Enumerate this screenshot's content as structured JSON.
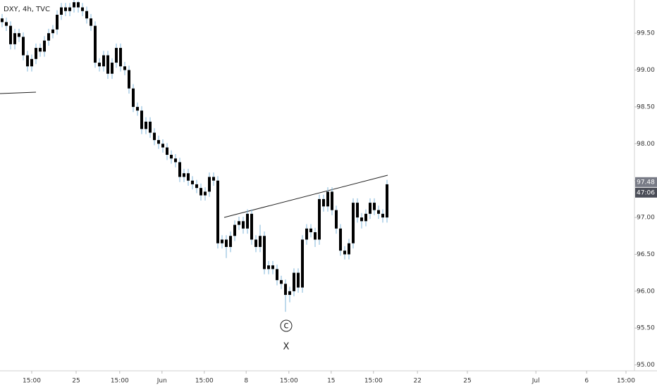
{
  "chart_data": {
    "type": "candlestick",
    "title": "DXY, 4h, TVC",
    "ylim": [
      94.92,
      99.95
    ],
    "yticks": [
      {
        "value": 95,
        "label": "95.00"
      },
      {
        "value": 95.5,
        "label": "95.50"
      },
      {
        "value": 96,
        "label": "96.00"
      },
      {
        "value": 96.5,
        "label": "96.50"
      },
      {
        "value": 97,
        "label": "97.00"
      },
      {
        "value": 97.5,
        "label": "97.50"
      },
      {
        "value": 98,
        "label": "98.00"
      },
      {
        "value": 98.5,
        "label": "98.50"
      },
      {
        "value": 99,
        "label": "99.00"
      },
      {
        "value": 99.5,
        "label": "99.50"
      }
    ],
    "xlim": [
      -0.5,
      149.5
    ],
    "xticks": [
      {
        "value": 7,
        "label": "15:00"
      },
      {
        "value": 17.5,
        "label": "25"
      },
      {
        "value": 27.8,
        "label": "15:00"
      },
      {
        "value": 37.8,
        "label": "Jun"
      },
      {
        "value": 47.8,
        "label": "15:00"
      },
      {
        "value": 57.7,
        "label": "8"
      },
      {
        "value": 67.8,
        "label": "15:00"
      },
      {
        "value": 77.8,
        "label": "15"
      },
      {
        "value": 87.8,
        "label": "15:00"
      },
      {
        "value": 98.2,
        "label": "22"
      },
      {
        "value": 110,
        "label": "25"
      },
      {
        "value": 126.2,
        "label": "Jul"
      },
      {
        "value": 138.2,
        "label": "6"
      },
      {
        "value": 147.5,
        "label": "15:00"
      }
    ],
    "body_color": "#000000",
    "wick_color": "#7fb6d9",
    "open": [
      99.7,
      99.65,
      99.6,
      99.35,
      99.5,
      99.45,
      99.2,
      99.05,
      99.15,
      99.3,
      99.25,
      99.4,
      99.5,
      99.55,
      99.75,
      99.85,
      99.8,
      99.85,
      99.92,
      99.85,
      99.8,
      99.7,
      99.6,
      99.1,
      99.05,
      99.2,
      98.95,
      99.1,
      99.3,
      99.05,
      99.0,
      98.75,
      98.5,
      98.45,
      98.2,
      98.3,
      98.15,
      98.05,
      98.0,
      97.95,
      97.85,
      97.8,
      97.75,
      97.55,
      97.6,
      97.5,
      97.45,
      97.4,
      97.3,
      97.35,
      97.55,
      97.5,
      96.65,
      96.7,
      96.6,
      96.75,
      96.9,
      96.95,
      96.85,
      97.05,
      96.7,
      96.6,
      96.75,
      96.3,
      96.35,
      96.3,
      96.15,
      96.1,
      95.95,
      96.0,
      96.25,
      96.05,
      96.7,
      96.85,
      96.8,
      96.7,
      97.25,
      97.15,
      97.35,
      97.1,
      96.85,
      96.55,
      96.5,
      96.65,
      97.2,
      97.0,
      96.95,
      97.05,
      97.2,
      97.1,
      97.05,
      97.0
    ],
    "high": [
      99.76,
      99.71,
      99.66,
      99.56,
      99.56,
      99.51,
      99.26,
      99.21,
      99.36,
      99.36,
      99.46,
      99.56,
      99.61,
      99.81,
      99.91,
      99.91,
      99.91,
      99.95,
      99.94,
      99.91,
      99.86,
      99.76,
      99.66,
      99.16,
      99.26,
      99.26,
      99.16,
      99.36,
      99.36,
      99.11,
      99.06,
      98.81,
      98.56,
      98.51,
      98.36,
      98.36,
      98.21,
      98.11,
      98.06,
      98.01,
      97.91,
      97.86,
      97.81,
      97.66,
      97.66,
      97.56,
      97.51,
      97.46,
      97.41,
      97.61,
      97.61,
      97.56,
      96.76,
      96.76,
      96.81,
      96.96,
      97.01,
      97.01,
      97.11,
      97.11,
      96.76,
      96.9,
      96.81,
      96.41,
      96.41,
      96.36,
      96.21,
      96.16,
      96.06,
      96.31,
      96.31,
      96.76,
      96.91,
      96.91,
      96.86,
      97.31,
      97.31,
      97.41,
      97.41,
      97.16,
      96.91,
      96.61,
      96.71,
      97.26,
      97.26,
      97.06,
      97.11,
      97.26,
      97.26,
      97.16,
      97.11,
      97.51
    ],
    "low": [
      99.58,
      99.53,
      99.28,
      99.28,
      99.38,
      99.13,
      98.98,
      98.98,
      99.08,
      99.18,
      99.18,
      99.33,
      99.43,
      99.48,
      99.68,
      99.73,
      99.73,
      99.78,
      99.78,
      99.73,
      99.63,
      99.53,
      99.03,
      98.98,
      98.98,
      98.88,
      98.88,
      99.03,
      98.98,
      98.93,
      98.68,
      98.43,
      98.38,
      98.13,
      98.13,
      98.08,
      97.98,
      97.93,
      97.88,
      97.78,
      97.73,
      97.68,
      97.48,
      97.48,
      97.43,
      97.38,
      97.33,
      97.23,
      97.23,
      97.28,
      97.43,
      96.58,
      96.58,
      96.45,
      96.53,
      96.68,
      96.83,
      96.78,
      96.78,
      96.63,
      96.53,
      96.53,
      96.23,
      96.23,
      96.23,
      96.08,
      96.03,
      95.72,
      95.85,
      95.93,
      95.98,
      95.98,
      96.63,
      96.73,
      96.6,
      96.63,
      97.08,
      97.08,
      97.03,
      96.78,
      96.48,
      96.43,
      96.43,
      96.58,
      96.93,
      96.85,
      96.88,
      96.98,
      97.03,
      96.98,
      96.93,
      96.93
    ],
    "close": [
      99.65,
      99.6,
      99.35,
      99.5,
      99.45,
      99.2,
      99.05,
      99.15,
      99.3,
      99.25,
      99.4,
      99.5,
      99.55,
      99.75,
      99.85,
      99.8,
      99.85,
      99.92,
      99.85,
      99.8,
      99.7,
      99.6,
      99.1,
      99.05,
      99.2,
      98.95,
      99.1,
      99.3,
      99.05,
      99.0,
      98.75,
      98.5,
      98.45,
      98.2,
      98.3,
      98.15,
      98.05,
      98.0,
      97.95,
      97.85,
      97.8,
      97.75,
      97.55,
      97.6,
      97.5,
      97.45,
      97.4,
      97.3,
      97.35,
      97.55,
      97.5,
      96.65,
      96.7,
      96.6,
      96.75,
      96.9,
      96.95,
      96.85,
      97.05,
      96.7,
      96.6,
      96.75,
      96.3,
      96.35,
      96.3,
      96.15,
      96.1,
      95.95,
      96.0,
      96.25,
      96.05,
      96.7,
      96.85,
      96.8,
      96.7,
      97.25,
      97.15,
      97.35,
      97.1,
      96.85,
      96.55,
      96.5,
      96.65,
      97.2,
      97.0,
      96.95,
      97.05,
      97.2,
      97.1,
      97.05,
      97.0,
      97.45
    ],
    "last_price": {
      "value": 97.48,
      "label": "97.48"
    },
    "countdown": "47:06",
    "annotations": {
      "wave": "c",
      "point": "X"
    }
  }
}
